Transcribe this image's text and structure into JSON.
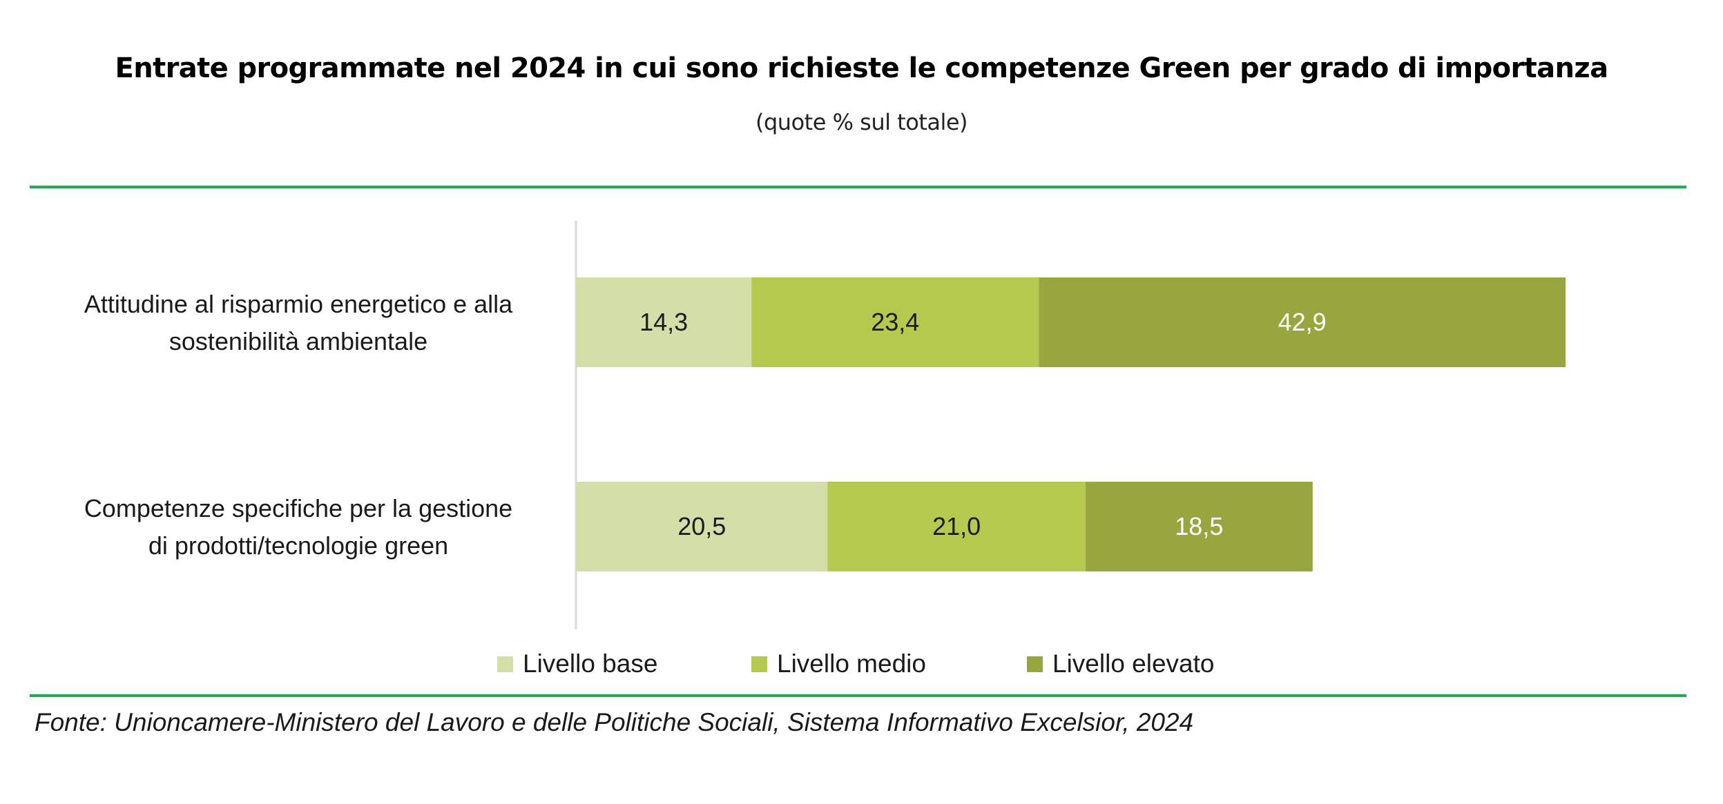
{
  "header": {
    "title": "Entrate programmate nel 2024 in cui sono richieste le competenze Green per grado di importanza",
    "subtitle": "(quote % sul totale)"
  },
  "colors": {
    "rule": "#2fa45f",
    "base": "#d3dfa9",
    "medio": "#b5c94e",
    "elevato": "#97a63f",
    "axis": "#d9d9d9"
  },
  "chart_data": {
    "type": "bar",
    "orientation": "horizontal",
    "stacked": true,
    "title": "Entrate programmate nel 2024 in cui sono richieste le competenze Green per grado di importanza",
    "subtitle": "(quote % sul totale)",
    "xlabel": "",
    "ylabel": "",
    "grid": false,
    "legend_position": "bottom",
    "categories": [
      [
        "Attitudine al risparmio energetico e alla",
        "sostenibilità ambientale"
      ],
      [
        "Competenze specifiche per la gestione",
        "di prodotti/tecnologie green"
      ]
    ],
    "series": [
      {
        "name": "Livello base",
        "color": "#d3dfa9",
        "label_color": "#1a1a1a",
        "values": [
          14.3,
          20.5
        ],
        "labels": [
          "14,3",
          "20,5"
        ]
      },
      {
        "name": "Livello medio",
        "color": "#b5c94e",
        "label_color": "#1a1a1a",
        "values": [
          23.4,
          21.0
        ],
        "labels": [
          "23,4",
          "21,0"
        ]
      },
      {
        "name": "Livello elevato",
        "color": "#97a63f",
        "label_color": "#ffffff",
        "values": [
          42.9,
          18.5
        ],
        "labels": [
          "42,9",
          "18,5"
        ]
      }
    ]
  },
  "legend": {
    "items": [
      {
        "label": "Livello base",
        "color": "#d3dfa9"
      },
      {
        "label": "Livello medio",
        "color": "#b5c94e"
      },
      {
        "label": "Livello elevato",
        "color": "#97a63f"
      }
    ]
  },
  "footer": {
    "source": "Fonte: Unioncamere-Ministero del Lavoro e delle Politiche Sociali, Sistema Informativo Excelsior, 2024"
  }
}
